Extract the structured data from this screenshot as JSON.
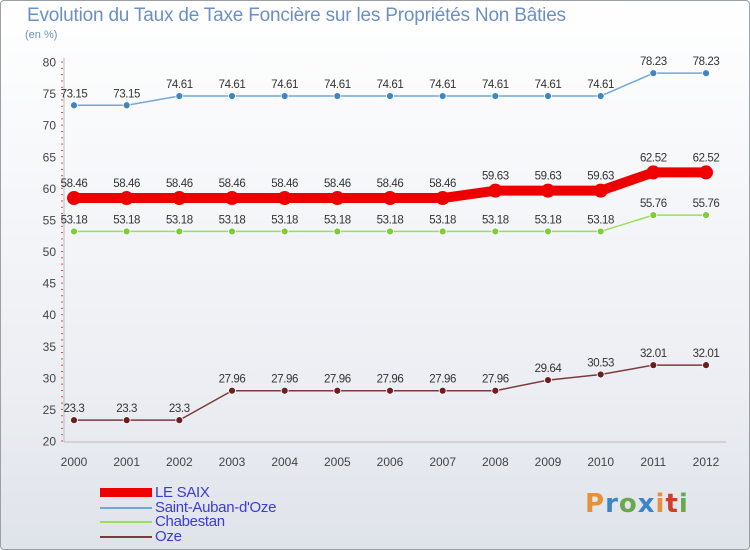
{
  "header": {
    "title": "Evolution du Taux de Taxe Foncière sur les Propriétés Non Bâties",
    "unit": "(en %)"
  },
  "logo": {
    "letters": [
      "P",
      "r",
      "o",
      "x",
      "i",
      "t",
      "i"
    ]
  },
  "chart_data": {
    "type": "line",
    "title": "Evolution du Taux de Taxe Foncière sur les Propriétés Non Bâties",
    "ylabel": "(en %)",
    "xlabel": "",
    "ylim": [
      20,
      80
    ],
    "yticks": [
      20,
      25,
      30,
      35,
      40,
      45,
      50,
      55,
      60,
      65,
      70,
      75,
      80
    ],
    "grid": false,
    "legend_position": "bottom-left",
    "categories": [
      "2000",
      "2001",
      "2002",
      "2003",
      "2004",
      "2005",
      "2006",
      "2007",
      "2008",
      "2009",
      "2010",
      "2011",
      "2012"
    ],
    "series": [
      {
        "name": "LE SAIX",
        "color": "#ee0000",
        "marker_fill": "#ee0000",
        "values": [
          58.46,
          58.46,
          58.46,
          58.46,
          58.46,
          58.46,
          58.46,
          58.46,
          59.63,
          59.63,
          59.63,
          62.52,
          62.52
        ],
        "labels": [
          "58.46",
          "58.46",
          "58.46",
          "58.46",
          "58.46",
          "58.46",
          "58.46",
          "58.46",
          "59.63",
          "59.63",
          "59.63",
          "62.52",
          "62.52"
        ]
      },
      {
        "name": "Saint-Auban-d'Oze",
        "color": "#6fa8dc",
        "marker_fill": "#3d85c6",
        "values": [
          73.15,
          73.15,
          74.61,
          74.61,
          74.61,
          74.61,
          74.61,
          74.61,
          74.61,
          74.61,
          74.61,
          78.23,
          78.23
        ],
        "labels": [
          "73.15",
          "73.15",
          "74.61",
          "74.61",
          "74.61",
          "74.61",
          "74.61",
          "74.61",
          "74.61",
          "74.61",
          "74.61",
          "78.23",
          "78.23"
        ]
      },
      {
        "name": "Chabestan",
        "color": "#99e05a",
        "marker_fill": "#7ccc3c",
        "values": [
          53.18,
          53.18,
          53.18,
          53.18,
          53.18,
          53.18,
          53.18,
          53.18,
          53.18,
          53.18,
          53.18,
          55.76,
          55.76
        ],
        "labels": [
          "53.18",
          "53.18",
          "53.18",
          "53.18",
          "53.18",
          "53.18",
          "53.18",
          "53.18",
          "53.18",
          "53.18",
          "53.18",
          "55.76",
          "55.76"
        ]
      },
      {
        "name": "Oze",
        "color": "#7a3b3b",
        "marker_fill": "#6b1f1f",
        "values": [
          23.3,
          23.3,
          23.3,
          27.96,
          27.96,
          27.96,
          27.96,
          27.96,
          27.96,
          29.64,
          30.53,
          32.01,
          32.01
        ],
        "labels": [
          "23.3",
          "23.3",
          "23.3",
          "27.96",
          "27.96",
          "27.96",
          "27.96",
          "27.96",
          "27.96",
          "29.64",
          "30.53",
          "32.01",
          "32.01"
        ]
      }
    ]
  }
}
